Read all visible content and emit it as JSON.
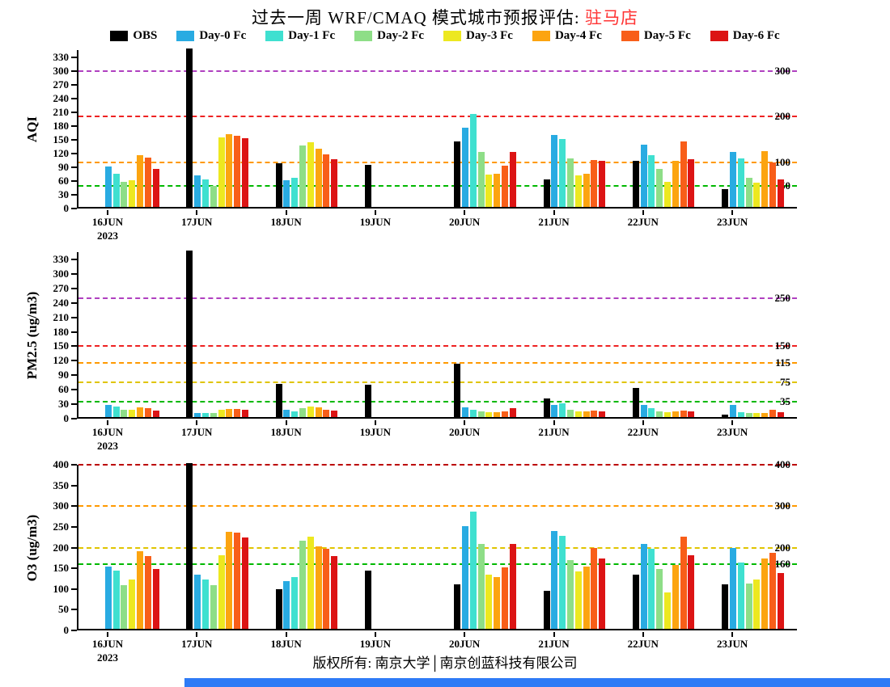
{
  "title": {
    "main": "过去一周 WRF/CMAQ 模式城市预报评估: ",
    "city": "驻马店",
    "city_color": "#FF3333"
  },
  "legend": {
    "items": [
      {
        "label": "OBS",
        "color": "#000000"
      },
      {
        "label": "Day-0 Fc",
        "color": "#29ABE2"
      },
      {
        "label": "Day-1 Fc",
        "color": "#3FE0D0"
      },
      {
        "label": "Day-2 Fc",
        "color": "#8EDE87"
      },
      {
        "label": "Day-3 Fc",
        "color": "#EDE820"
      },
      {
        "label": "Day-4 Fc",
        "color": "#FCA410"
      },
      {
        "label": "Day-5 Fc",
        "color": "#F85E19"
      },
      {
        "label": "Day-6 Fc",
        "color": "#DC1414"
      }
    ]
  },
  "footer": {
    "text": "版权所有: 南京大学│南京创蓝科技有限公司"
  },
  "colors": {
    "taskbar": "#2E7BF6"
  },
  "chart_data": [
    {
      "type": "bar",
      "ylabel": "AQI",
      "ylim": [
        0,
        345
      ],
      "yticks": [
        0,
        30,
        60,
        90,
        120,
        150,
        180,
        210,
        240,
        270,
        300,
        330
      ],
      "categories": [
        "16JUN",
        "17JUN",
        "18JUN",
        "19JUN",
        "20JUN",
        "21JUN",
        "22JUN",
        "23JUN"
      ],
      "year_label": {
        "index": 0,
        "text": "2023"
      },
      "legend_position": "top",
      "grid": "reference-lines-only",
      "series": [
        {
          "name": "OBS",
          "values": [
            null,
            345,
            95,
            92,
            143,
            60,
            100,
            38
          ]
        },
        {
          "name": "Day-0 Fc",
          "values": [
            88,
            68,
            58,
            null,
            172,
            157,
            135,
            120
          ]
        },
        {
          "name": "Day-1 Fc",
          "values": [
            72,
            60,
            63,
            null,
            203,
            148,
            112,
            105
          ]
        },
        {
          "name": "Day-2 Fc",
          "values": [
            55,
            45,
            133,
            null,
            120,
            105,
            83,
            63
          ]
        },
        {
          "name": "Day-3 Fc",
          "values": [
            58,
            152,
            140,
            null,
            70,
            68,
            55,
            53
          ]
        },
        {
          "name": "Day-4 Fc",
          "values": [
            113,
            158,
            127,
            null,
            72,
            73,
            100,
            122
          ]
        },
        {
          "name": "Day-5 Fc",
          "values": [
            107,
            155,
            115,
            null,
            90,
            102,
            143,
            97
          ]
        },
        {
          "name": "Day-6 Fc",
          "values": [
            83,
            150,
            103,
            null,
            120,
            100,
            103,
            60
          ]
        }
      ],
      "ref_lines": [
        {
          "value": 50,
          "label": "50",
          "color": "#00B800"
        },
        {
          "value": 100,
          "label": "100",
          "color": "#FF9900"
        },
        {
          "value": 200,
          "label": "200",
          "color": "#EE2222"
        },
        {
          "value": 300,
          "label": "300",
          "color": "#B040C0"
        }
      ]
    },
    {
      "type": "bar",
      "ylabel": "PM2.5 (ug/m3)",
      "ylim": [
        0,
        345
      ],
      "yticks": [
        0,
        30,
        60,
        90,
        120,
        150,
        180,
        210,
        240,
        270,
        300,
        330
      ],
      "categories": [
        "16JUN",
        "17JUN",
        "18JUN",
        "19JUN",
        "20JUN",
        "21JUN",
        "22JUN",
        "23JUN"
      ],
      "year_label": {
        "index": 0,
        "text": "2023"
      },
      "grid": "reference-lines-only",
      "series": [
        {
          "name": "OBS",
          "values": [
            null,
            345,
            68,
            67,
            110,
            38,
            60,
            5
          ]
        },
        {
          "name": "Day-0 Fc",
          "values": [
            25,
            8,
            15,
            null,
            20,
            25,
            25,
            25
          ]
        },
        {
          "name": "Day-1 Fc",
          "values": [
            22,
            8,
            12,
            null,
            15,
            28,
            18,
            10
          ]
        },
        {
          "name": "Day-2 Fc",
          "values": [
            15,
            8,
            18,
            null,
            12,
            15,
            12,
            8
          ]
        },
        {
          "name": "Day-3 Fc",
          "values": [
            15,
            15,
            22,
            null,
            10,
            12,
            10,
            8
          ]
        },
        {
          "name": "Day-4 Fc",
          "values": [
            20,
            17,
            20,
            null,
            10,
            12,
            12,
            8
          ]
        },
        {
          "name": "Day-5 Fc",
          "values": [
            18,
            17,
            15,
            null,
            12,
            13,
            13,
            15
          ]
        },
        {
          "name": "Day-6 Fc",
          "values": [
            13,
            15,
            13,
            null,
            18,
            12,
            12,
            10
          ]
        }
      ],
      "ref_lines": [
        {
          "value": 35,
          "label": "35",
          "color": "#00B800"
        },
        {
          "value": 75,
          "label": "75",
          "color": "#E0C400"
        },
        {
          "value": 115,
          "label": "115",
          "color": "#FF9900"
        },
        {
          "value": 150,
          "label": "150",
          "color": "#EE2222"
        },
        {
          "value": 250,
          "label": "250",
          "color": "#B040C0"
        }
      ]
    },
    {
      "type": "bar",
      "ylabel": "O3 (ug/m3)",
      "ylim": [
        0,
        400
      ],
      "yticks": [
        0,
        50,
        100,
        150,
        200,
        250,
        300,
        350,
        400
      ],
      "categories": [
        "16JUN",
        "17JUN",
        "18JUN",
        "19JUN",
        "20JUN",
        "21JUN",
        "22JUN",
        "23JUN"
      ],
      "year_label": {
        "index": 0,
        "text": "2023"
      },
      "grid": "reference-lines-only",
      "series": [
        {
          "name": "OBS",
          "values": [
            null,
            400,
            95,
            140,
            108,
            92,
            130,
            107
          ]
        },
        {
          "name": "Day-0 Fc",
          "values": [
            150,
            130,
            115,
            null,
            247,
            237,
            205,
            195
          ]
        },
        {
          "name": "Day-1 Fc",
          "values": [
            140,
            120,
            125,
            null,
            282,
            225,
            193,
            160
          ]
        },
        {
          "name": "Day-2 Fc",
          "values": [
            105,
            105,
            212,
            null,
            205,
            165,
            145,
            110
          ]
        },
        {
          "name": "Day-3 Fc",
          "values": [
            120,
            178,
            222,
            null,
            130,
            138,
            88,
            120
          ]
        },
        {
          "name": "Day-4 Fc",
          "values": [
            188,
            235,
            200,
            null,
            125,
            150,
            155,
            170
          ]
        },
        {
          "name": "Day-5 Fc",
          "values": [
            175,
            232,
            193,
            null,
            148,
            195,
            222,
            183
          ]
        },
        {
          "name": "Day-6 Fc",
          "values": [
            145,
            220,
            175,
            null,
            205,
            170,
            178,
            135
          ]
        }
      ],
      "ref_lines": [
        {
          "value": 160,
          "label": "160",
          "color": "#00B800"
        },
        {
          "value": 200,
          "label": "200",
          "color": "#E0C400"
        },
        {
          "value": 300,
          "label": "300",
          "color": "#FF9900"
        },
        {
          "value": 400,
          "label": "400",
          "color": "#BB0000"
        }
      ]
    }
  ]
}
